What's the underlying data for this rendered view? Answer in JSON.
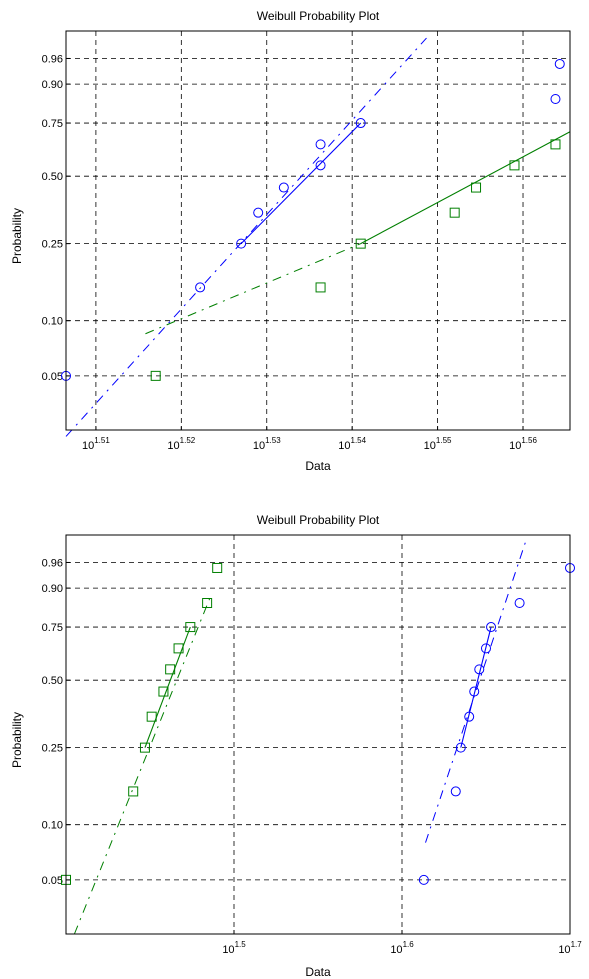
{
  "chart_data": [
    {
      "type": "scatter",
      "title": "Weibull Probability Plot",
      "xlabel": "Data",
      "ylabel": "Probability",
      "x_scale": "log10",
      "xlim_exp": [
        1.5065,
        1.5655
      ],
      "ylim": [
        0.025,
        0.99
      ],
      "y_scale": "weibull",
      "grid": true,
      "x_ticks": [
        {
          "exp": 1.51,
          "base": "10",
          "sup": "1.51"
        },
        {
          "exp": 1.52,
          "base": "10",
          "sup": "1.52"
        },
        {
          "exp": 1.53,
          "base": "10",
          "sup": "1.53"
        },
        {
          "exp": 1.54,
          "base": "10",
          "sup": "1.54"
        },
        {
          "exp": 1.55,
          "base": "10",
          "sup": "1.55"
        },
        {
          "exp": 1.56,
          "base": "10",
          "sup": "1.56"
        }
      ],
      "y_ticks": [
        {
          "p": 0.05,
          "label": "0.05"
        },
        {
          "p": 0.1,
          "label": "0.10"
        },
        {
          "p": 0.25,
          "label": "0.25"
        },
        {
          "p": 0.5,
          "label": "0.50"
        },
        {
          "p": 0.75,
          "label": "0.75"
        },
        {
          "p": 0.9,
          "label": "0.90"
        },
        {
          "p": 0.96,
          "label": "0.96"
        }
      ],
      "series": [
        {
          "marker": "circle",
          "color": "#0000ff",
          "points_exp_p": [
            [
              1.5065,
              0.05
            ],
            [
              1.5222,
              0.15
            ],
            [
              1.527,
              0.25
            ],
            [
              1.529,
              0.35
            ],
            [
              1.532,
              0.45
            ],
            [
              1.5363,
              0.55
            ],
            [
              1.5363,
              0.65
            ],
            [
              1.541,
              0.75
            ],
            [
              1.5638,
              0.85
            ],
            [
              1.5643,
              0.95
            ]
          ],
          "fit_solid": [
            [
              1.527,
              0.25
            ],
            [
              1.541,
              0.75
            ]
          ],
          "fit_dashed": [
            [
              1.5065,
              0.023
            ],
            [
              1.5487,
              0.985
            ]
          ]
        },
        {
          "marker": "square",
          "color": "#007f00",
          "points_exp_p": [
            [
              1.517,
              0.05
            ],
            [
              1.5363,
              0.15
            ],
            [
              1.541,
              0.25
            ],
            [
              1.552,
              0.35
            ],
            [
              1.5545,
              0.45
            ],
            [
              1.559,
              0.55
            ],
            [
              1.5638,
              0.65
            ]
          ],
          "fit_solid": [
            [
              1.541,
              0.25
            ],
            [
              1.5655,
              0.71
            ]
          ],
          "fit_dashed": [
            [
              1.5158,
              0.085
            ],
            [
              1.541,
              0.25
            ]
          ]
        }
      ]
    },
    {
      "type": "scatter",
      "title": "Weibull Probability Plot",
      "xlabel": "Data",
      "ylabel": "Probability",
      "x_scale": "log10",
      "xlim_exp": [
        1.4,
        1.7
      ],
      "ylim": [
        0.025,
        0.99
      ],
      "y_scale": "weibull",
      "grid": true,
      "x_ticks": [
        {
          "exp": 1.5,
          "base": "10",
          "sup": "1.5"
        },
        {
          "exp": 1.6,
          "base": "10",
          "sup": "1.6"
        },
        {
          "exp": 1.7,
          "base": "10",
          "sup": "1.7"
        }
      ],
      "y_ticks": [
        {
          "p": 0.05,
          "label": "0.05"
        },
        {
          "p": 0.1,
          "label": "0.10"
        },
        {
          "p": 0.25,
          "label": "0.25"
        },
        {
          "p": 0.5,
          "label": "0.50"
        },
        {
          "p": 0.75,
          "label": "0.75"
        },
        {
          "p": 0.9,
          "label": "0.90"
        },
        {
          "p": 0.96,
          "label": "0.96"
        }
      ],
      "series": [
        {
          "marker": "square",
          "color": "#007f00",
          "points_exp_p": [
            [
              1.4,
              0.05
            ],
            [
              1.44,
              0.15
            ],
            [
              1.447,
              0.25
            ],
            [
              1.451,
              0.35
            ],
            [
              1.458,
              0.45
            ],
            [
              1.462,
              0.55
            ],
            [
              1.467,
              0.65
            ],
            [
              1.474,
              0.75
            ],
            [
              1.484,
              0.85
            ],
            [
              1.49,
              0.95
            ]
          ],
          "fit_solid": [
            [
              1.447,
              0.25
            ],
            [
              1.474,
              0.75
            ]
          ],
          "fit_dashed": [
            [
              1.405,
              0.025
            ],
            [
              1.4865,
              0.88
            ]
          ]
        },
        {
          "marker": "circle",
          "color": "#0000ff",
          "points_exp_p": [
            [
              1.613,
              0.05
            ],
            [
              1.632,
              0.15
            ],
            [
              1.635,
              0.25
            ],
            [
              1.64,
              0.35
            ],
            [
              1.643,
              0.45
            ],
            [
              1.646,
              0.55
            ],
            [
              1.65,
              0.65
            ],
            [
              1.653,
              0.75
            ],
            [
              1.67,
              0.85
            ],
            [
              1.7,
              0.95
            ]
          ],
          "fit_solid": [
            [
              1.635,
              0.25
            ],
            [
              1.653,
              0.75
            ]
          ],
          "fit_dashed": [
            [
              1.614,
              0.08
            ],
            [
              1.6735,
              0.985
            ]
          ]
        }
      ]
    }
  ]
}
